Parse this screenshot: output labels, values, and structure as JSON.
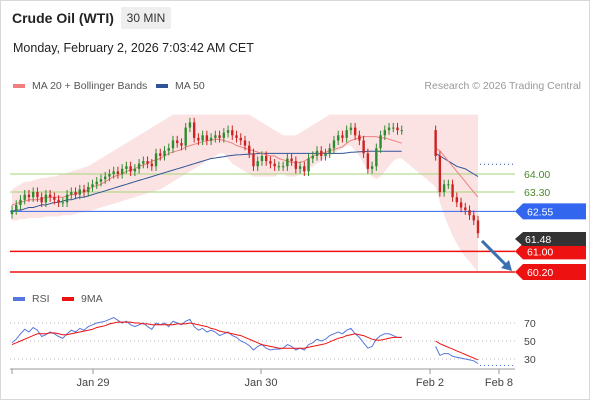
{
  "header": {
    "title": "Crude Oil (WTI)",
    "timeframe": "30 MIN",
    "datetime": "Monday, February 2, 2026 7:03:42 AM CET"
  },
  "legend": {
    "ma20_label": "MA 20 + Bollinger Bands",
    "ma50_label": "MA 50",
    "rsi_label": "RSI",
    "rsi_ma_label": "9MA",
    "copyright": "Research © 2026 Trading Central"
  },
  "colors": {
    "ma20": "#f08080",
    "ma50": "#2f5597",
    "bollinger_fill": "#fbe3e3",
    "candle_up": "#2e8b2e",
    "candle_down": "#cc2222",
    "resistance_line": "#a6d37a",
    "pivot_line": "#3366ee",
    "support_line": "#ee1111",
    "last_price_badge": "#333333",
    "rsi_line": "#5577dd",
    "rsi_ma_line": "#ee1111"
  },
  "chart_data": [
    {
      "type": "candlestick",
      "x_ticks": [
        "Jan 29",
        "Jan 30",
        "Feb 2",
        "Feb 8"
      ],
      "ylim": [
        59.6,
        66.3
      ],
      "last_price": 61.48,
      "levels": [
        {
          "value": 64.0,
          "label": "64.00",
          "kind": "resistance"
        },
        {
          "value": 63.3,
          "label": "63.30",
          "kind": "resistance"
        },
        {
          "value": 62.55,
          "label": "62.55",
          "kind": "pivot"
        },
        {
          "value": 61.0,
          "label": "61.00",
          "kind": "support"
        },
        {
          "value": 60.2,
          "label": "60.20",
          "kind": "support"
        }
      ],
      "last_price_label": "61.48",
      "forecast_target": 60.2,
      "closes": [
        62.6,
        62.8,
        63.0,
        63.2,
        63.1,
        63.3,
        63.1,
        62.9,
        63.2,
        63.1,
        63.0,
        62.9,
        62.9,
        63.2,
        63.3,
        63.2,
        63.4,
        63.3,
        63.5,
        63.6,
        63.7,
        63.8,
        63.9,
        64.0,
        64.1,
        64.0,
        64.2,
        64.3,
        64.1,
        64.2,
        64.4,
        64.5,
        64.4,
        64.3,
        64.8,
        64.7,
        64.9,
        65.0,
        65.3,
        65.2,
        65.1,
        65.8,
        66.0,
        65.4,
        65.3,
        65.5,
        65.3,
        65.4,
        65.5,
        65.4,
        65.6,
        65.7,
        65.5,
        65.4,
        65.3,
        65.1,
        64.8,
        64.3,
        64.5,
        64.7,
        64.5,
        64.4,
        64.3,
        64.3,
        64.3,
        64.6,
        64.5,
        64.2,
        64.3,
        64.1,
        64.6,
        64.7,
        64.9,
        64.7,
        64.8,
        65.0,
        65.3,
        65.5,
        65.4,
        65.7,
        65.8,
        65.5,
        65.3,
        64.8,
        64.2,
        64.3,
        65.0,
        65.5,
        65.7,
        65.8,
        65.8,
        65.7,
        65.7,
        null,
        null,
        null,
        null,
        null,
        null,
        null,
        64.7,
        63.3,
        63.6,
        63.6,
        63.1,
        62.9,
        62.7,
        62.6,
        62.4,
        62.2,
        61.7
      ],
      "ma20": [
        62.8,
        62.85,
        62.9,
        62.95,
        63.0,
        63.0,
        63.0,
        63.05,
        63.1,
        63.1,
        63.1,
        63.1,
        63.1,
        63.15,
        63.2,
        63.2,
        63.3,
        63.3,
        63.4,
        63.5,
        63.55,
        63.6,
        63.7,
        63.8,
        63.9,
        63.95,
        64.0,
        64.1,
        64.15,
        64.2,
        64.3,
        64.35,
        64.4,
        64.5,
        64.55,
        64.6,
        64.7,
        64.8,
        64.85,
        64.9,
        64.95,
        65.05,
        65.1,
        65.15,
        65.2,
        65.25,
        65.3,
        65.3,
        65.35,
        65.35,
        65.3,
        65.25,
        65.2,
        65.1,
        65.05,
        65.0,
        64.95,
        64.9,
        64.85,
        64.8,
        64.75,
        64.7,
        64.7,
        64.6,
        64.55,
        64.5,
        64.45,
        64.45,
        64.45,
        64.5,
        64.6,
        64.7,
        64.75,
        64.8,
        64.85,
        64.9,
        64.95,
        65.0,
        65.05,
        65.2,
        65.3,
        65.35,
        65.4,
        65.45,
        65.45,
        65.45,
        65.45,
        65.4,
        65.4,
        65.35,
        65.3,
        65.25,
        65.2,
        null,
        null,
        null,
        null,
        null,
        null,
        null,
        65.0,
        64.9,
        64.7,
        64.5,
        64.3,
        64.1,
        63.9,
        63.7,
        63.5,
        63.3,
        63.1
      ],
      "ma50": [
        62.55,
        62.6,
        62.6,
        62.65,
        62.7,
        62.7,
        62.75,
        62.8,
        62.8,
        62.85,
        62.9,
        62.9,
        62.95,
        63.0,
        63.0,
        63.05,
        63.1,
        63.1,
        63.15,
        63.2,
        63.25,
        63.3,
        63.35,
        63.4,
        63.45,
        63.5,
        63.55,
        63.6,
        63.65,
        63.7,
        63.75,
        63.8,
        63.85,
        63.9,
        63.95,
        64.0,
        64.05,
        64.1,
        64.15,
        64.2,
        64.25,
        64.3,
        64.35,
        64.4,
        64.45,
        64.5,
        64.55,
        64.6,
        64.62,
        64.65,
        64.67,
        64.7,
        64.72,
        64.74,
        64.75,
        64.76,
        64.77,
        64.78,
        64.79,
        64.8,
        64.8,
        64.8,
        64.8,
        64.8,
        64.8,
        64.8,
        64.8,
        64.8,
        64.8,
        64.8,
        64.8,
        64.8,
        64.8,
        64.8,
        64.8,
        64.8,
        64.8,
        64.8,
        64.8,
        64.82,
        64.84,
        64.85,
        64.86,
        64.87,
        64.88,
        64.88,
        64.88,
        64.88,
        64.88,
        64.88,
        64.88,
        64.88,
        64.88,
        null,
        null,
        null,
        null,
        null,
        null,
        null,
        64.8,
        64.7,
        64.6,
        64.5,
        64.4,
        64.3,
        64.25,
        64.2,
        64.1,
        64.0,
        63.9
      ],
      "boll_upper": [
        63.4,
        63.5,
        63.6,
        63.7,
        63.7,
        63.75,
        63.8,
        63.85,
        63.85,
        63.9,
        63.9,
        63.95,
        64.0,
        64.05,
        64.1,
        64.15,
        64.2,
        64.25,
        64.3,
        64.4,
        64.5,
        64.6,
        64.7,
        64.8,
        64.9,
        65.0,
        65.1,
        65.2,
        65.3,
        65.4,
        65.5,
        65.6,
        65.7,
        65.8,
        65.9,
        66.0,
        66.1,
        66.2,
        66.3,
        66.3,
        66.3,
        66.3,
        66.3,
        66.3,
        66.3,
        66.3,
        66.3,
        66.3,
        66.3,
        66.3,
        66.3,
        66.3,
        66.3,
        66.3,
        66.3,
        66.3,
        66.3,
        66.2,
        66.1,
        66.0,
        65.9,
        65.8,
        65.7,
        65.6,
        65.5,
        65.5,
        65.5,
        65.5,
        65.6,
        65.7,
        65.8,
        65.9,
        66.0,
        66.1,
        66.2,
        66.3,
        66.3,
        66.3,
        66.3,
        66.3,
        66.3,
        66.3,
        66.3,
        66.3,
        66.3,
        66.3,
        66.3,
        66.3,
        66.3,
        66.3,
        66.3,
        66.3,
        66.3,
        null,
        null,
        null,
        null,
        null,
        null,
        null,
        66.3,
        66.3,
        66.3,
        66.3,
        66.3,
        66.3,
        66.3,
        66.3,
        66.3,
        66.3,
        66.3
      ],
      "boll_lower": [
        62.2,
        62.2,
        62.25,
        62.25,
        62.3,
        62.3,
        62.3,
        62.3,
        62.35,
        62.35,
        62.35,
        62.35,
        62.4,
        62.4,
        62.4,
        62.45,
        62.5,
        62.5,
        62.55,
        62.6,
        62.65,
        62.7,
        62.75,
        62.8,
        62.85,
        62.9,
        62.95,
        63.0,
        63.05,
        63.1,
        63.15,
        63.2,
        63.25,
        63.3,
        63.35,
        63.4,
        63.5,
        63.6,
        63.7,
        63.8,
        63.9,
        64.0,
        64.1,
        64.2,
        64.3,
        64.4,
        64.5,
        64.6,
        64.7,
        64.8,
        64.8,
        64.6,
        64.4,
        64.3,
        64.2,
        64.1,
        64.0,
        63.9,
        63.9,
        63.9,
        63.9,
        63.9,
        63.9,
        64.0,
        64.0,
        63.9,
        63.9,
        63.9,
        64.0,
        64.1,
        64.2,
        64.3,
        64.4,
        64.5,
        64.6,
        64.7,
        64.8,
        64.9,
        65.0,
        65.1,
        65.1,
        64.9,
        64.7,
        64.4,
        64.1,
        63.9,
        63.8,
        63.9,
        64.1,
        64.3,
        64.5,
        64.6,
        64.6,
        null,
        null,
        null,
        null,
        null,
        null,
        null,
        63.5,
        62.9,
        62.4,
        62.0,
        61.6,
        61.3,
        61.0,
        60.8,
        60.6,
        60.4,
        60.2
      ]
    },
    {
      "type": "line",
      "name": "RSI",
      "yticks": [
        70,
        50,
        30
      ],
      "ylim": [
        20,
        80
      ],
      "x_ticks": [
        "Jan 29",
        "Jan 30",
        "Feb 2",
        "Feb 8"
      ],
      "rsi": [
        48,
        52,
        58,
        63,
        60,
        65,
        62,
        55,
        57,
        60,
        58,
        55,
        53,
        58,
        62,
        60,
        64,
        62,
        66,
        68,
        70,
        71,
        72,
        74,
        76,
        73,
        70,
        72,
        68,
        66,
        68,
        70,
        66,
        63,
        70,
        68,
        70,
        66,
        72,
        70,
        68,
        72,
        74,
        66,
        62,
        64,
        60,
        62,
        60,
        56,
        58,
        60,
        56,
        54,
        50,
        48,
        45,
        40,
        44,
        46,
        42,
        40,
        41,
        41,
        42,
        46,
        44,
        40,
        42,
        40,
        46,
        48,
        52,
        50,
        52,
        56,
        58,
        60,
        58,
        62,
        64,
        58,
        54,
        48,
        42,
        44,
        52,
        56,
        58,
        58,
        56,
        54,
        54,
        null,
        null,
        null,
        null,
        null,
        null,
        null,
        44,
        34,
        36,
        36,
        33,
        32,
        31,
        30,
        29,
        28,
        25
      ],
      "rsi_ma": [
        46,
        48,
        50,
        52,
        54,
        56,
        58,
        58,
        58,
        59,
        59,
        58,
        57,
        57,
        58,
        59,
        60,
        61,
        62,
        63,
        65,
        66,
        67,
        69,
        70,
        71,
        71,
        71,
        71,
        70,
        70,
        69,
        69,
        68,
        68,
        68,
        68,
        68,
        68,
        69,
        69,
        69,
        70,
        69,
        68,
        67,
        66,
        64,
        63,
        61,
        60,
        59,
        58,
        57,
        56,
        54,
        52,
        50,
        48,
        46,
        45,
        44,
        43,
        42,
        42,
        42,
        42,
        42,
        42,
        42,
        43,
        44,
        45,
        46,
        47,
        49,
        51,
        53,
        54,
        56,
        57,
        58,
        57,
        56,
        54,
        52,
        51,
        51,
        52,
        53,
        54,
        54,
        54,
        null,
        null,
        null,
        null,
        null,
        null,
        null,
        50,
        47,
        45,
        43,
        41,
        39,
        37,
        35,
        33,
        31,
        29
      ]
    }
  ]
}
